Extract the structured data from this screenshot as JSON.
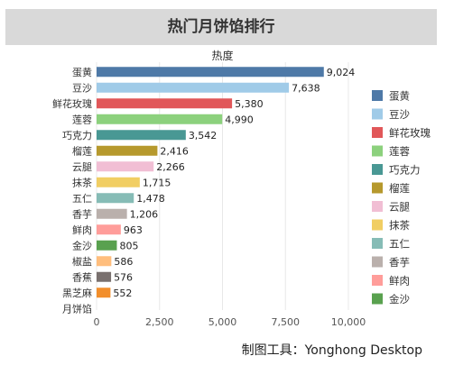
{
  "header": {
    "title": "热门月饼馅排行"
  },
  "footer": {
    "credit": "制图工具：Yonghong Desktop"
  },
  "chart_data": {
    "type": "bar",
    "orientation": "horizontal",
    "title": "热度",
    "categories": [
      "蛋黄",
      "豆沙",
      "鲜花玫瑰",
      "莲蓉",
      "巧克力",
      "榴莲",
      "云腿",
      "抹茶",
      "五仁",
      "香芋",
      "鲜肉",
      "金沙",
      "椒盐",
      "香蕉",
      "黑芝麻",
      "月饼馅"
    ],
    "values": [
      9024,
      7638,
      5380,
      4990,
      3542,
      2416,
      2266,
      1715,
      1478,
      1206,
      963,
      805,
      586,
      576,
      552,
      null
    ],
    "value_labels": [
      "9,024",
      "7,638",
      "5,380",
      "4,990",
      "3,542",
      "2,416",
      "2,266",
      "1,715",
      "1,478",
      "1,206",
      "963",
      "805",
      "586",
      "576",
      "552",
      ""
    ],
    "colors": [
      "#4e79a7",
      "#a0cbe8",
      "#e15759",
      "#8cd17d",
      "#499894",
      "#b6992d",
      "#f1bed4",
      "#f1ce63",
      "#86bcb6",
      "#bab0ac",
      "#ff9d9a",
      "#59a14f",
      "#ffbe7d",
      "#79706e",
      "#f28e2b",
      "#cccccc"
    ],
    "xlim": [
      0,
      10000
    ],
    "xticks": [
      0,
      2500,
      5000,
      7500,
      10000
    ],
    "xtick_labels": [
      "0",
      "2,500",
      "5,000",
      "7,500",
      "10,000"
    ],
    "grid": true,
    "legend_position": "right",
    "legend": [
      {
        "label": "蛋黄",
        "color": "#4e79a7"
      },
      {
        "label": "豆沙",
        "color": "#a0cbe8"
      },
      {
        "label": "鲜花玫瑰",
        "color": "#e15759"
      },
      {
        "label": "莲蓉",
        "color": "#8cd17d"
      },
      {
        "label": "巧克力",
        "color": "#499894"
      },
      {
        "label": "榴莲",
        "color": "#b6992d"
      },
      {
        "label": "云腿",
        "color": "#f1bed4"
      },
      {
        "label": "抹茶",
        "color": "#f1ce63"
      },
      {
        "label": "五仁",
        "color": "#86bcb6"
      },
      {
        "label": "香芋",
        "color": "#bab0ac"
      },
      {
        "label": "鲜肉",
        "color": "#ff9d9a"
      },
      {
        "label": "金沙",
        "color": "#59a14f"
      }
    ]
  }
}
